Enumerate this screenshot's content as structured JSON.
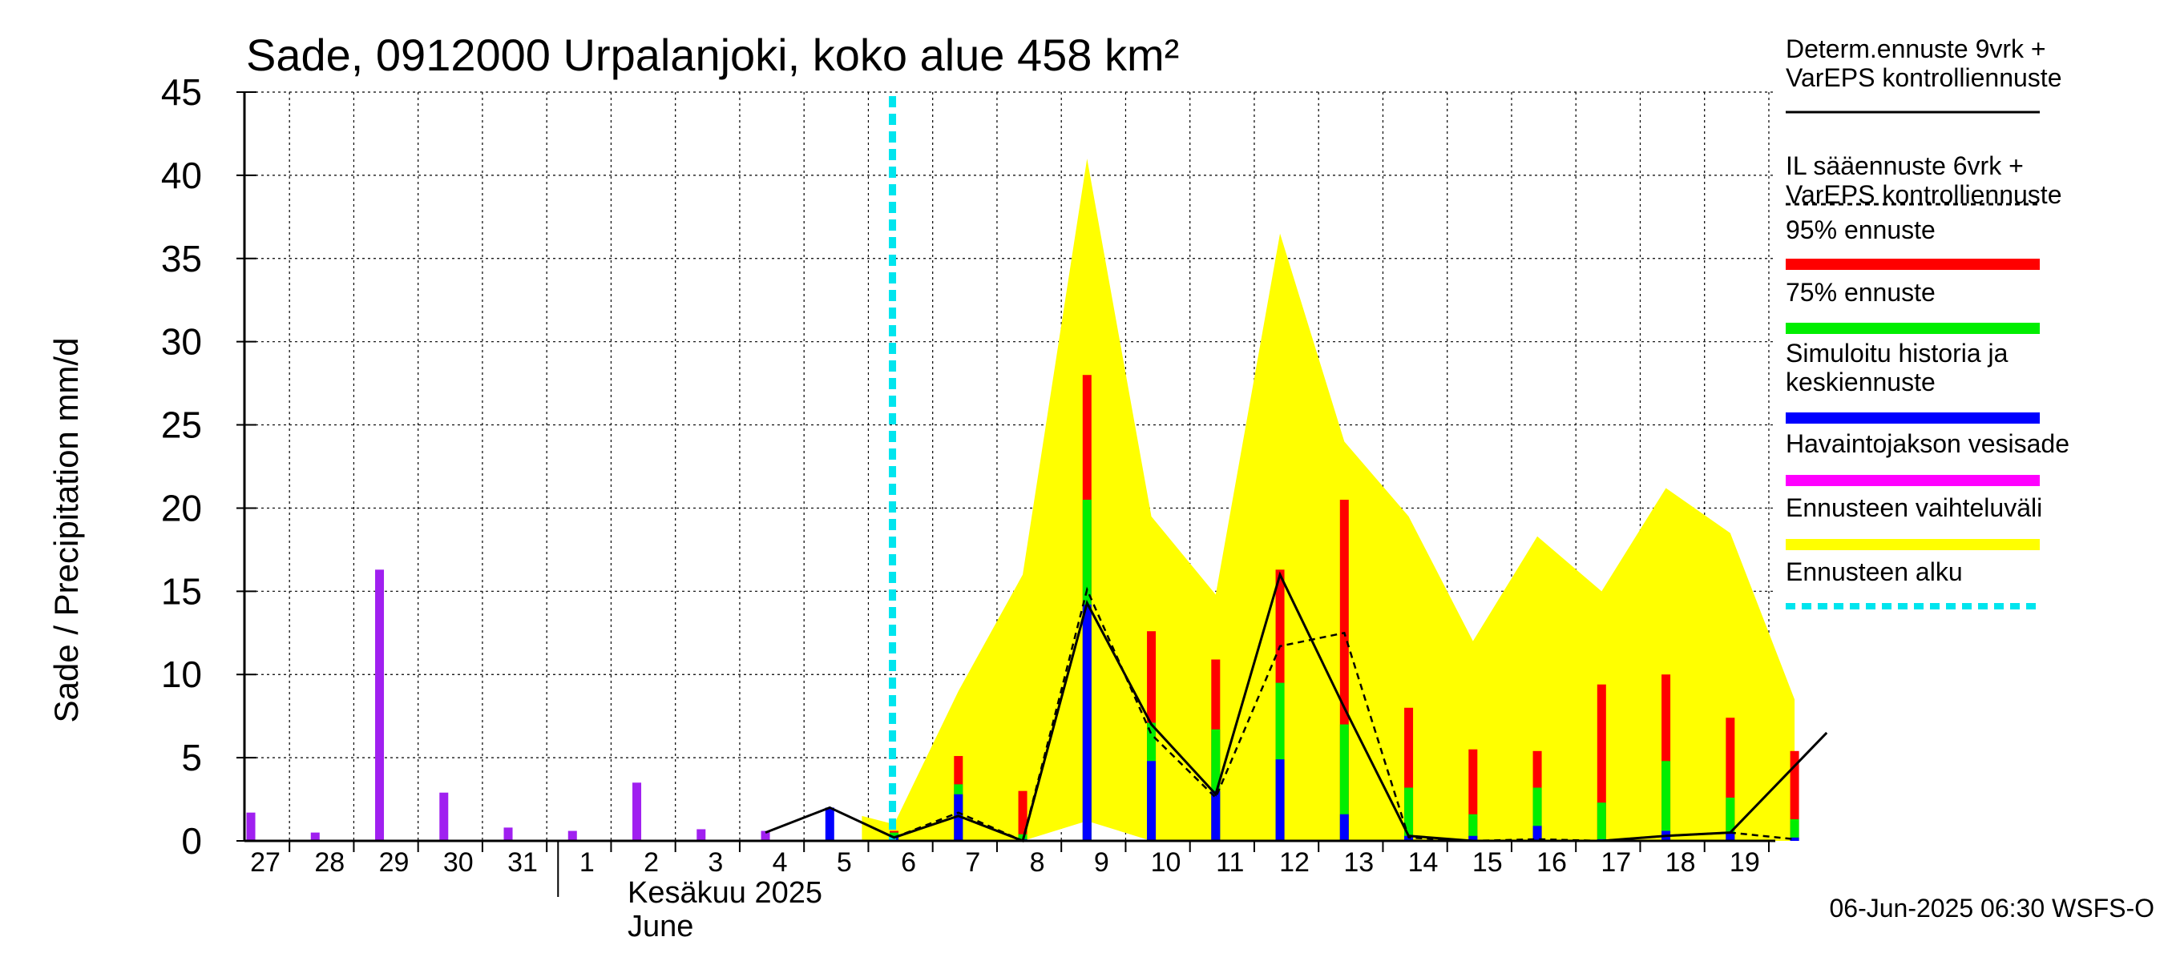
{
  "chart_data": {
    "type": "bar",
    "title": "Sade, 0912000 Urpalanjoki, koko alue 458 km²",
    "ylabel": "Sade / Precipitation   mm/d",
    "ylim": [
      0,
      45
    ],
    "yticks": [
      0,
      5,
      10,
      15,
      20,
      25,
      30,
      35,
      40,
      45
    ],
    "grid": true,
    "x_labels": [
      "27",
      "28",
      "29",
      "30",
      "31",
      "1",
      "2",
      "3",
      "4",
      "5",
      "6",
      "7",
      "8",
      "9",
      "10",
      "11",
      "12",
      "13",
      "14",
      "15",
      "16",
      "17",
      "18",
      "19"
    ],
    "month_labels": [
      "Kesäkuu  2025",
      "June"
    ],
    "forecast_start_day": 10,
    "observed": [
      {
        "day": 0,
        "value": 1.7
      },
      {
        "day": 1,
        "value": 0.5
      },
      {
        "day": 2,
        "value": 16.3
      },
      {
        "day": 3,
        "value": 2.9
      },
      {
        "day": 4,
        "value": 0.8
      },
      {
        "day": 5,
        "value": 0.6
      },
      {
        "day": 6,
        "value": 3.5
      },
      {
        "day": 7,
        "value": 0.7
      },
      {
        "day": 8,
        "value": 0.6
      }
    ],
    "simulated_history": [
      {
        "day": 9,
        "value": 2.0
      }
    ],
    "forecast_bars": [
      {
        "day": 10,
        "median": 0.3,
        "p75": 0.5,
        "p95": 0.6
      },
      {
        "day": 11,
        "median": 2.8,
        "p75": 3.4,
        "p95": 5.1
      },
      {
        "day": 12,
        "median": 0.1,
        "p75": 0.4,
        "p95": 3.0
      },
      {
        "day": 13,
        "median": 14.2,
        "p75": 20.5,
        "p95": 28.0
      },
      {
        "day": 14,
        "median": 4.8,
        "p75": 7.1,
        "p95": 12.6
      },
      {
        "day": 15,
        "median": 3.0,
        "p75": 6.7,
        "p95": 10.9
      },
      {
        "day": 16,
        "median": 4.9,
        "p75": 9.5,
        "p95": 16.3
      },
      {
        "day": 17,
        "median": 1.6,
        "p75": 7.0,
        "p95": 20.5
      },
      {
        "day": 18,
        "median": 0.3,
        "p75": 3.2,
        "p95": 8.0
      },
      {
        "day": 19,
        "median": 0.3,
        "p75": 1.6,
        "p95": 5.5
      },
      {
        "day": 20,
        "median": 0.9,
        "p75": 3.2,
        "p95": 5.4
      },
      {
        "day": 21,
        "median": 0.1,
        "p75": 2.3,
        "p95": 9.4
      },
      {
        "day": 22,
        "median": 0.6,
        "p75": 4.8,
        "p95": 10.0
      },
      {
        "day": 23,
        "median": 0.5,
        "p75": 2.6,
        "p95": 7.4
      },
      {
        "day": 24,
        "median": 0.2,
        "p75": 1.3,
        "p95": 5.4
      }
    ],
    "forecast_range": {
      "day": [
        9.5,
        10,
        11,
        12,
        13,
        14,
        15,
        16,
        17,
        18,
        19,
        20,
        21,
        22,
        23,
        24
      ],
      "upper": [
        1.5,
        1.0,
        9.0,
        16.0,
        41.0,
        19.5,
        14.8,
        36.5,
        24.0,
        19.5,
        12.0,
        18.3,
        15.0,
        21.2,
        18.5,
        8.5
      ],
      "lower": [
        0,
        0,
        0,
        0,
        1.2,
        0,
        0,
        0,
        0,
        0,
        0,
        0,
        0,
        0,
        0,
        0
      ]
    },
    "determ_line": [
      {
        "day": 8,
        "value": 0.5
      },
      {
        "day": 9,
        "value": 2.0
      },
      {
        "day": 10,
        "value": 0.2
      },
      {
        "day": 11,
        "value": 1.5
      },
      {
        "day": 12,
        "value": 0.0
      },
      {
        "day": 13,
        "value": 14.3
      },
      {
        "day": 14,
        "value": 7.0
      },
      {
        "day": 15,
        "value": 2.8
      },
      {
        "day": 16,
        "value": 16.0
      },
      {
        "day": 17,
        "value": 8.0
      },
      {
        "day": 18,
        "value": 0.3
      },
      {
        "day": 19,
        "value": 0.0
      },
      {
        "day": 20,
        "value": 0.0
      },
      {
        "day": 21,
        "value": 0.0
      },
      {
        "day": 22,
        "value": 0.3
      },
      {
        "day": 23,
        "value": 0.5
      },
      {
        "day": 24.5,
        "value": 6.5
      }
    ],
    "il_line": [
      {
        "day": 10,
        "value": 0.2
      },
      {
        "day": 11,
        "value": 1.7
      },
      {
        "day": 12,
        "value": 0.0
      },
      {
        "day": 13,
        "value": 15.1
      },
      {
        "day": 14,
        "value": 6.4
      },
      {
        "day": 15,
        "value": 2.6
      },
      {
        "day": 16,
        "value": 11.7
      },
      {
        "day": 17,
        "value": 12.5
      },
      {
        "day": 18,
        "value": 0.2
      },
      {
        "day": 19,
        "value": 0.0
      },
      {
        "day": 20,
        "value": 0.1
      },
      {
        "day": 21,
        "value": 0.0
      },
      {
        "day": 22,
        "value": 0.3
      },
      {
        "day": 23,
        "value": 0.5
      },
      {
        "day": 24,
        "value": 0.1
      }
    ],
    "legend": [
      {
        "label": "Determ.ennuste 9vrk +\nVarEPS kontrolliennuste",
        "style": "solid-black"
      },
      {
        "label": "IL sääennuste 6vrk  +\n  VarEPS kontrolliennuste",
        "style": "dashed-black"
      },
      {
        "label": "95% ennuste",
        "color": "#ff0000"
      },
      {
        "label": "75% ennuste",
        "color": "#00ee00"
      },
      {
        "label": "Simuloitu historia ja\nkeskiennuste",
        "color": "#0000ff"
      },
      {
        "label": "Havaintojakson vesisade",
        "color": "#ff00ff"
      },
      {
        "label": "Ennusteen vaihteluväli",
        "color": "#ffff00"
      },
      {
        "label": "Ennusteen alku",
        "color": "#00e5ee",
        "style": "dashed"
      }
    ],
    "colors": {
      "p95": "#ff0000",
      "p75": "#00ee00",
      "median": "#0000ff",
      "observed": "#a020f0",
      "observed_legend": "#ff00ff",
      "range": "#ffff00",
      "forecast_start": "#00e5ee"
    },
    "footer": "06-Jun-2025 06:30 WSFS-O"
  }
}
